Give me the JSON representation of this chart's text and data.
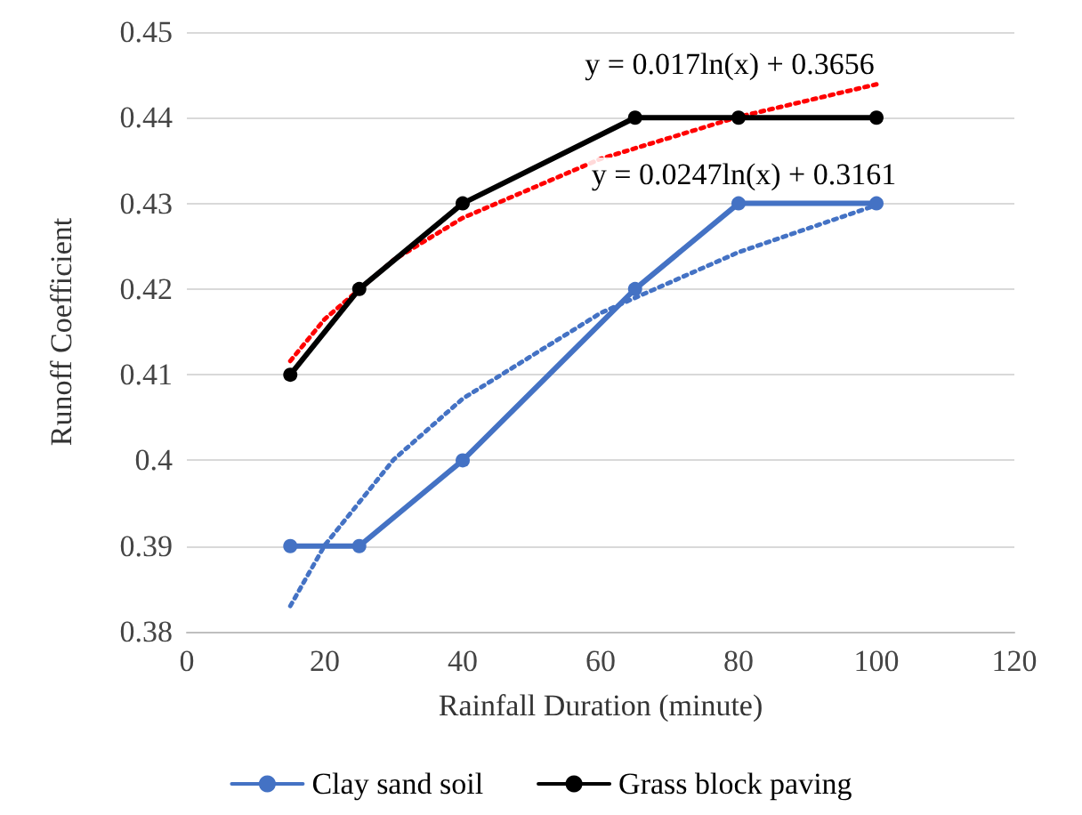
{
  "chart_data": {
    "type": "line",
    "xlabel": "Rainfall Duration (minute)",
    "ylabel": "Runoff Coefficient",
    "xlim": [
      0,
      120
    ],
    "xticks": [
      0,
      20,
      40,
      60,
      80,
      100,
      120
    ],
    "ylim": [
      0.38,
      0.45
    ],
    "yticks": [
      0.38,
      0.39,
      0.4,
      0.41,
      0.42,
      0.43,
      0.44,
      0.45
    ],
    "grid": "y",
    "legend": "bottom",
    "marker": "circle",
    "line_style": "solid",
    "series": [
      {
        "name": "Clay sand soil",
        "color": "#4472c4",
        "x": [
          15,
          25,
          40,
          65,
          80,
          100
        ],
        "values": [
          0.39,
          0.39,
          0.4,
          0.42,
          0.43,
          0.43
        ]
      },
      {
        "name": "Grass block paving",
        "color": "#000000",
        "x": [
          15,
          25,
          40,
          65,
          80,
          100
        ],
        "values": [
          0.41,
          0.42,
          0.43,
          0.44,
          0.44,
          0.44
        ]
      },
      {
        "type": "line",
        "color": "#ff0000",
        "marker": "none",
        "line_style": "dotted",
        "x": [
          15,
          20,
          30,
          40,
          60,
          80,
          100
        ],
        "values": [
          0.4116,
          0.4165,
          0.4234,
          0.4283,
          0.4352,
          0.4401,
          0.4439
        ]
      },
      {
        "type": "line",
        "color": "#4472c4",
        "marker": "none",
        "line_style": "dotted",
        "x": [
          15,
          20,
          30,
          40,
          60,
          80,
          100
        ],
        "values": [
          0.383,
          0.3901,
          0.4001,
          0.4072,
          0.4172,
          0.4243,
          0.4298
        ]
      }
    ],
    "annotations": [
      "y = 0.017ln(x) + 0.3656",
      "y = 0.0247ln(x) + 0.3161"
    ]
  }
}
